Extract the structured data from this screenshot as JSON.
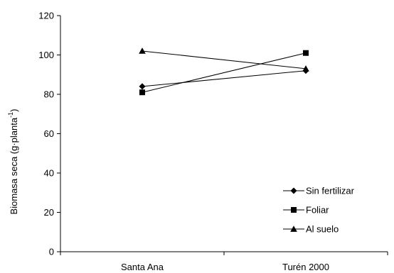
{
  "chart_data": {
    "type": "line",
    "categories": [
      "Santa Ana",
      "Turén 2000"
    ],
    "ylabel": "Biomasa seca (g·planta",
    "ylabel_sup": "-1",
    "ylabel_close": ")",
    "ylim": [
      0,
      120
    ],
    "yticks": [
      0,
      20,
      40,
      60,
      80,
      100,
      120
    ],
    "grid": false,
    "legend_position": "bottom-right",
    "series": [
      {
        "name": "Sin fertilizar",
        "marker": "diamond",
        "values": [
          84,
          92
        ]
      },
      {
        "name": "Foliar",
        "marker": "square",
        "values": [
          81,
          101
        ]
      },
      {
        "name": "Al suelo",
        "marker": "triangle",
        "values": [
          102,
          93
        ]
      }
    ],
    "colors": {
      "line": "#000000",
      "background": "#ffffff"
    }
  }
}
